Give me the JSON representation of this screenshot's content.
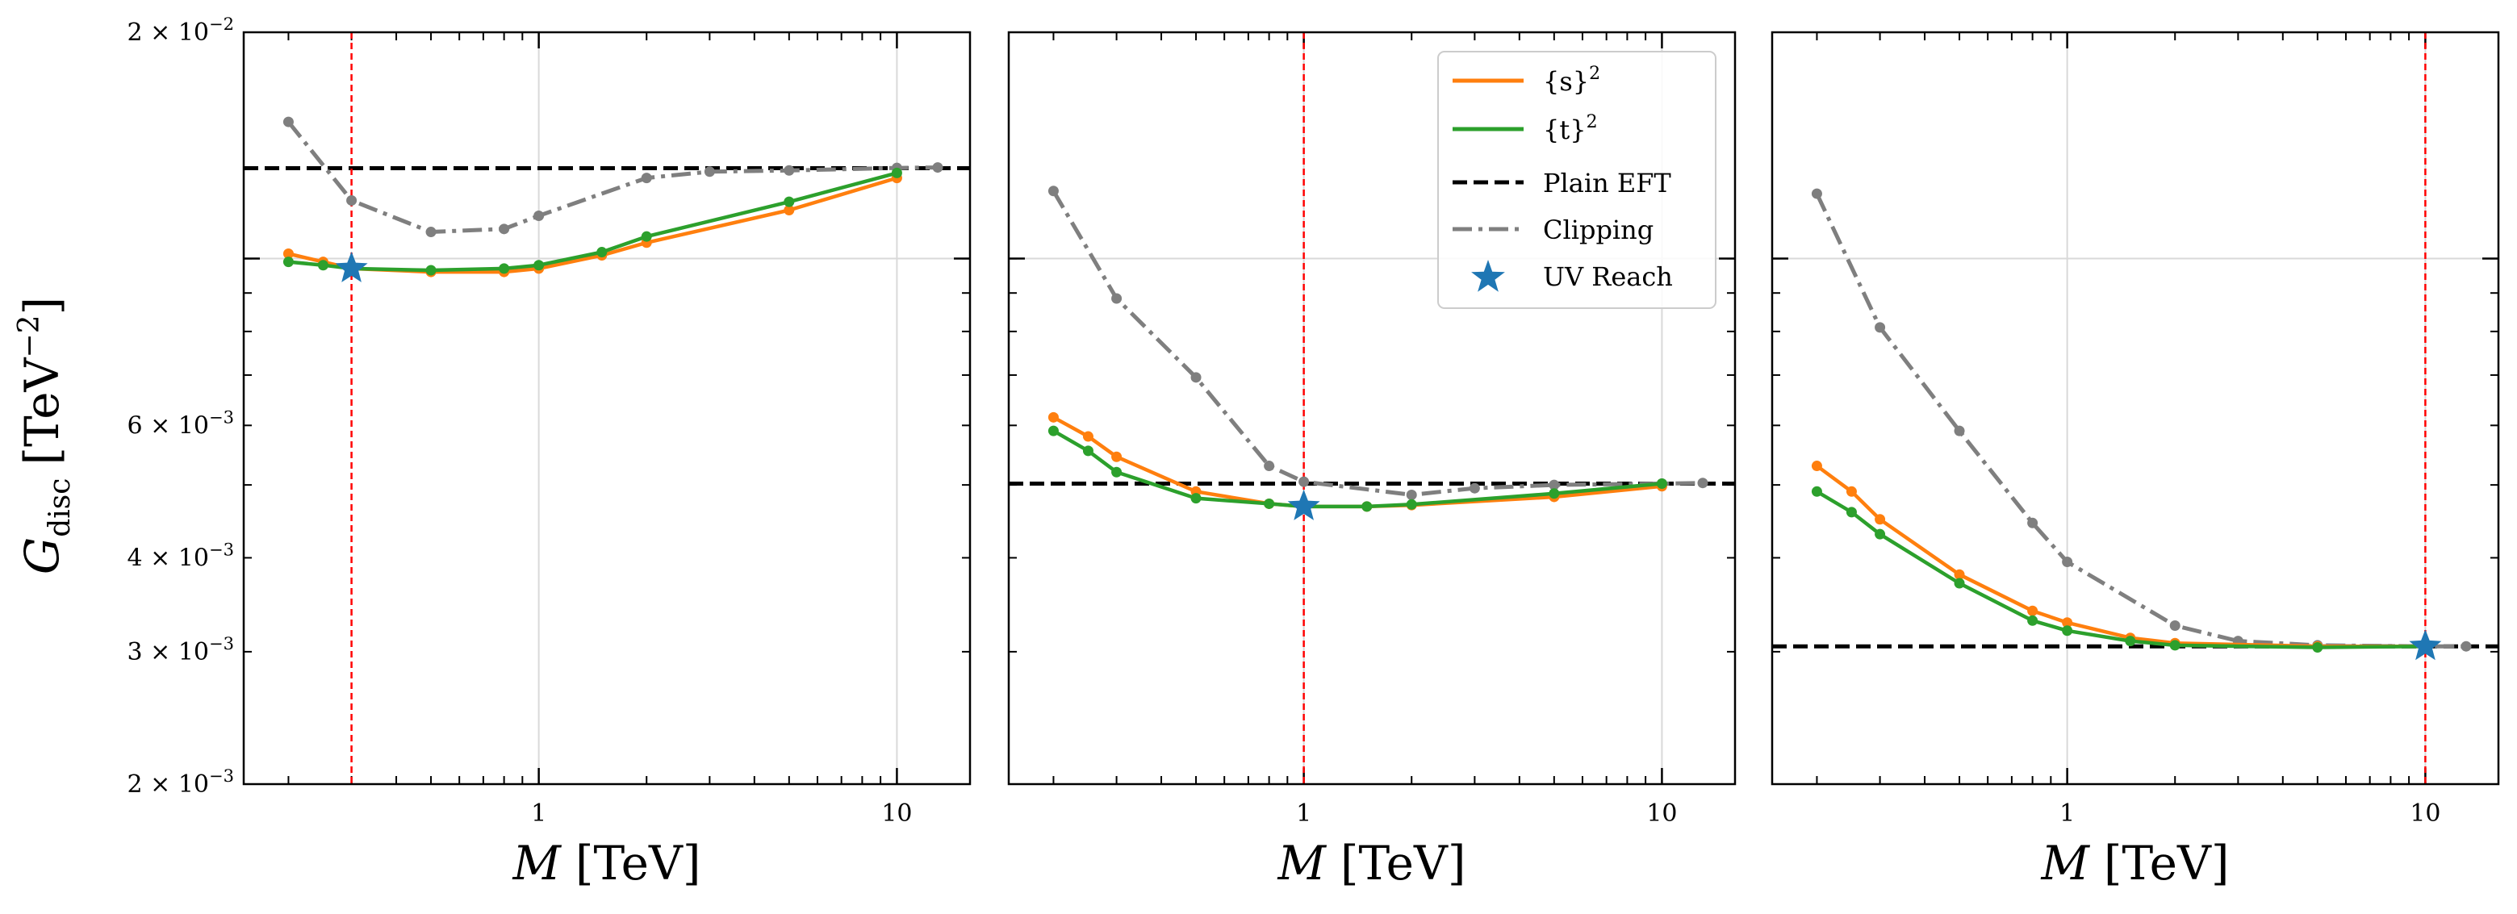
{
  "figure": {
    "ylabel_symbol": "G",
    "ylabel_sub": "disc",
    "ylabel_unit": "[TeV",
    "ylabel_unit_exp": "−2",
    "ylabel_unit_close": "]",
    "xlabel_symbol": "M",
    "xlabel_unit": "[TeV]"
  },
  "legend": {
    "s2": "{s}",
    "s2_exp": "2",
    "t2": "{t}",
    "t2_exp": "2",
    "plain": "Plain EFT",
    "clipping": "Clipping",
    "uv": "UV Reach"
  },
  "colors": {
    "s2": "#ff7f0e",
    "t2": "#2ca02c",
    "plain": "#000000",
    "clipping": "#7f7f7f",
    "star": "#1f77b4",
    "vline": "#ff0000"
  },
  "chart_data": [
    {
      "type": "line",
      "xscale": "log",
      "yscale": "log",
      "xlim": [
        0.15,
        16
      ],
      "ylim": [
        0.002,
        0.02
      ],
      "xticks": [
        1,
        10
      ],
      "xtick_labels": [
        "1",
        "10"
      ],
      "yticks": [
        0.002,
        0.003,
        0.004,
        0.006,
        0.02
      ],
      "ytick_labels": [
        {
          "base": "2 × 10",
          "exp": "−3"
        },
        {
          "base": "3 × 10",
          "exp": "−3"
        },
        {
          "base": "4 × 10",
          "exp": "−3"
        },
        {
          "base": "6 × 10",
          "exp": "−3"
        },
        {
          "base": "2 × 10",
          "exp": "−2"
        }
      ],
      "hgrid": [
        0.01
      ],
      "vgrid": [
        1,
        10
      ],
      "plain_eft": 0.01319,
      "uv_reach": {
        "x": 0.3,
        "y": 0.0097
      },
      "vline": 0.3,
      "series": [
        {
          "name": "Clipping",
          "x": [
            0.2,
            0.3,
            0.5,
            0.8,
            1.0,
            2.0,
            3.0,
            5.0,
            10.0,
            13.0
          ],
          "values": [
            0.0152,
            0.01195,
            0.01085,
            0.01095,
            0.0114,
            0.0128,
            0.01305,
            0.0131,
            0.0132,
            0.01322
          ]
        },
        {
          "name": "{s}^2",
          "x": [
            0.2,
            0.25,
            0.3,
            0.5,
            0.8,
            1.0,
            1.5,
            2.0,
            5.0,
            10.0
          ],
          "values": [
            0.01015,
            0.0099,
            0.0097,
            0.0096,
            0.0096,
            0.0097,
            0.0101,
            0.0105,
            0.0116,
            0.0128
          ]
        },
        {
          "name": "{t}^2",
          "x": [
            0.2,
            0.25,
            0.3,
            0.5,
            0.8,
            1.0,
            1.5,
            2.0,
            5.0,
            10.0
          ],
          "values": [
            0.0099,
            0.0098,
            0.0097,
            0.00965,
            0.0097,
            0.0098,
            0.0102,
            0.0107,
            0.0119,
            0.013
          ]
        }
      ]
    },
    {
      "type": "line",
      "xscale": "log",
      "yscale": "log",
      "xlim": [
        0.15,
        16
      ],
      "ylim": [
        0.002,
        0.02
      ],
      "xticks": [
        1,
        10
      ],
      "xtick_labels": [
        "1",
        "10"
      ],
      "hgrid": [
        0.01
      ],
      "vgrid": [
        1,
        10
      ],
      "plain_eft": 0.00502,
      "uv_reach": {
        "x": 1.0,
        "y": 0.00468
      },
      "vline": 1.0,
      "series": [
        {
          "name": "Clipping",
          "x": [
            0.2,
            0.3,
            0.5,
            0.8,
            1.0,
            2.0,
            3.0,
            5.0,
            10.0,
            13.0
          ],
          "values": [
            0.0123,
            0.00885,
            0.00695,
            0.0053,
            0.00505,
            0.00485,
            0.00495,
            0.005,
            0.00502,
            0.00503
          ]
        },
        {
          "name": "{s}^2",
          "x": [
            0.2,
            0.25,
            0.3,
            0.5,
            0.8,
            1.0,
            1.5,
            2.0,
            5.0,
            10.0
          ],
          "values": [
            0.00615,
            0.0058,
            0.00545,
            0.0049,
            0.00472,
            0.00468,
            0.00468,
            0.0047,
            0.00482,
            0.00498
          ]
        },
        {
          "name": "{t}^2",
          "x": [
            0.2,
            0.25,
            0.3,
            0.5,
            0.8,
            1.0,
            1.5,
            2.0,
            5.0,
            10.0
          ],
          "values": [
            0.0059,
            0.00555,
            0.0052,
            0.0048,
            0.00472,
            0.00468,
            0.00468,
            0.00471,
            0.00487,
            0.00502
          ]
        }
      ]
    },
    {
      "type": "line",
      "xscale": "log",
      "yscale": "log",
      "xlim": [
        0.15,
        16
      ],
      "ylim": [
        0.002,
        0.02
      ],
      "xticks": [
        1,
        10
      ],
      "xtick_labels": [
        "1",
        "10"
      ],
      "hgrid": [
        0.01
      ],
      "vgrid": [
        1,
        10
      ],
      "plain_eft": 0.00305,
      "uv_reach": {
        "x": 10.0,
        "y": 0.00305
      },
      "vline": 10.0,
      "series": [
        {
          "name": "Clipping",
          "x": [
            0.2,
            0.3,
            0.5,
            0.8,
            1.0,
            2.0,
            3.0,
            5.0,
            10.0,
            13.0
          ],
          "values": [
            0.0122,
            0.0081,
            0.0059,
            0.00445,
            0.00395,
            0.00325,
            0.0031,
            0.00306,
            0.00305,
            0.00305
          ]
        },
        {
          "name": "{s}^2",
          "x": [
            0.2,
            0.25,
            0.3,
            0.5,
            0.8,
            1.0,
            1.5,
            2.0,
            5.0,
            10.0
          ],
          "values": [
            0.0053,
            0.0049,
            0.0045,
            0.0038,
            0.0034,
            0.00328,
            0.00313,
            0.00308,
            0.00305,
            0.00305
          ]
        },
        {
          "name": "{t}^2",
          "x": [
            0.2,
            0.25,
            0.3,
            0.5,
            0.8,
            1.0,
            1.5,
            2.0,
            5.0,
            10.0
          ],
          "values": [
            0.0049,
            0.0046,
            0.0043,
            0.0037,
            0.0033,
            0.0032,
            0.0031,
            0.00306,
            0.00304,
            0.00305
          ]
        }
      ]
    }
  ]
}
